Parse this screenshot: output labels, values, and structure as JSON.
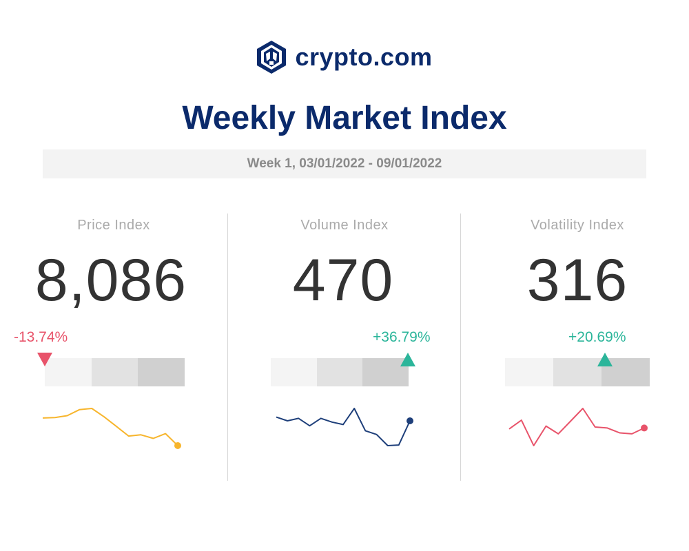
{
  "brand": {
    "name": "crypto.com",
    "color": "#0b2a6b",
    "icon": "crypto-com-lion-logo-icon"
  },
  "title": "Weekly Market Index",
  "week": "Week 1, 03/01/2022 - 09/01/2022",
  "colors": {
    "negative": "#e8536a",
    "positive": "#2bb59a"
  },
  "chart_data": [
    {
      "type": "line",
      "label": "Price Index",
      "value": "8,086",
      "change": "-13.74%",
      "direction": "down",
      "range_position": 0.0,
      "line_color": "#f7b52c",
      "values": [
        18,
        18.2,
        19,
        21.5,
        22,
        18.5,
        14.5,
        10.5,
        11,
        9.5,
        11.5,
        6.5
      ]
    },
    {
      "type": "line",
      "label": "Volume Index",
      "value": "470",
      "change": "+36.79%",
      "direction": "up",
      "range_position": 1.0,
      "line_color": "#1e3f7a",
      "values": [
        29,
        26,
        28,
        22,
        28,
        25,
        23,
        36,
        18,
        15,
        6,
        6.5,
        26
      ]
    },
    {
      "type": "line",
      "label": "Volatility Index",
      "value": "316",
      "change": "+20.69%",
      "direction": "up",
      "range_position": 0.7,
      "line_color": "#e8536a",
      "values": [
        23,
        32,
        6,
        26,
        18,
        31,
        44,
        25,
        24,
        19,
        18,
        24
      ]
    }
  ]
}
